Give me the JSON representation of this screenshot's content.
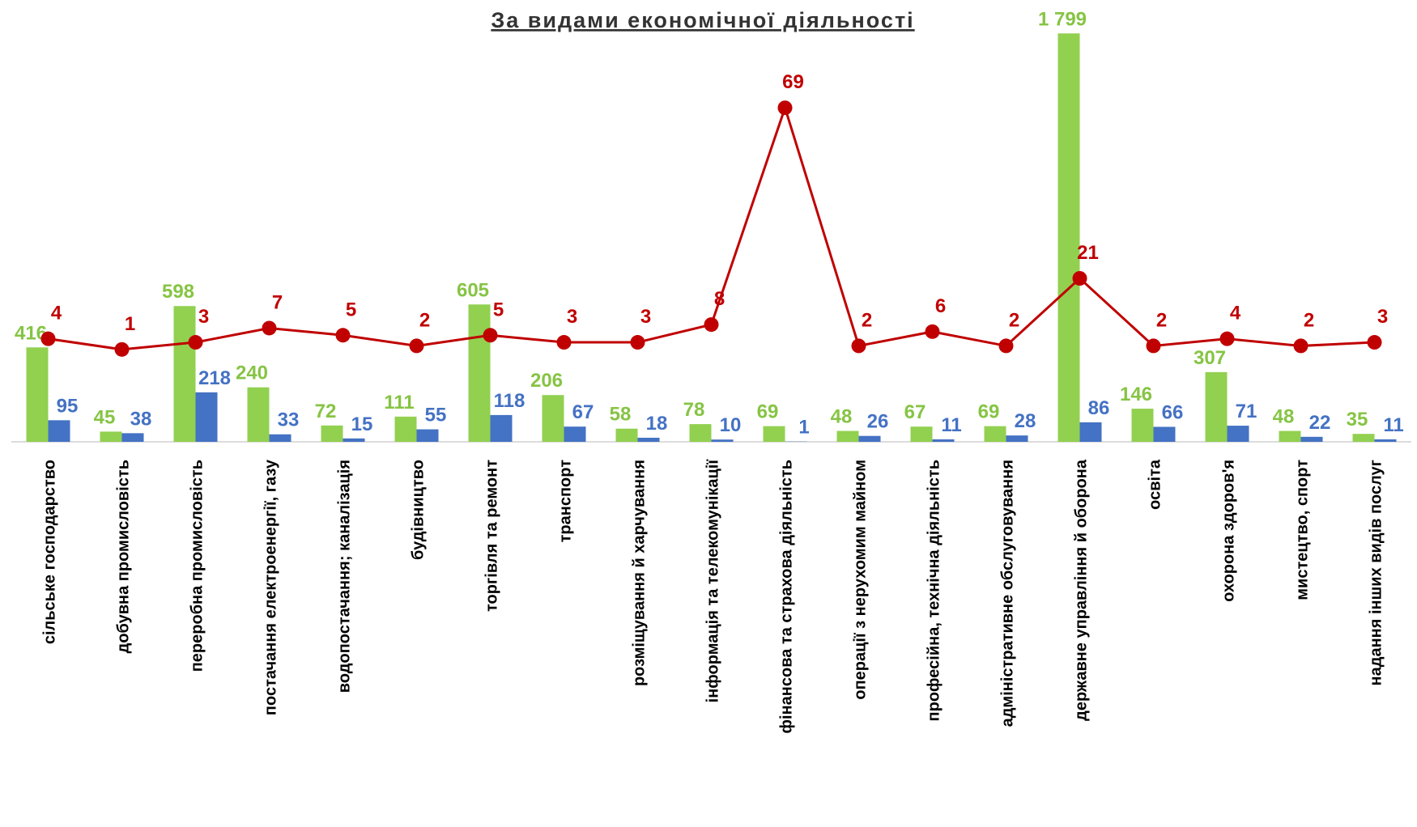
{
  "chart_data": {
    "type": "bar",
    "title": "За видами економічної діяльності",
    "categories": [
      "сільське господарство",
      "добувна промисловість",
      "переробна промисловість",
      "постачання електроенергії, газу",
      "водопостачання; каналізація",
      "будівництво",
      "торгівля та ремонт",
      "транспорт",
      "розміщування й харчування",
      "інформація та телекомунікації",
      "фінансова та страхова діяльність",
      "операції з нерухомим майном",
      "професійна, технічна діяльність",
      "адміністративне обслуговування",
      "державне управління й оборона",
      "освіта",
      "охорона здоров'я",
      "мистецтво, спорт",
      "надання інших видів послуг"
    ],
    "series": [
      {
        "color": "#92d050",
        "values": [
          416,
          45,
          598,
          240,
          72,
          111,
          605,
          206,
          58,
          78,
          69,
          48,
          67,
          69,
          1799,
          146,
          307,
          48,
          35
        ],
        "value_labels": [
          "416",
          "45",
          "598",
          "240",
          "72",
          "111",
          "605",
          "206",
          "58",
          "78",
          "69",
          "48",
          "67",
          "69",
          "1 799",
          "146",
          "307",
          "48",
          "35"
        ]
      },
      {
        "color": "#4472c4",
        "values": [
          95,
          38,
          218,
          33,
          15,
          55,
          118,
          67,
          18,
          10,
          1,
          26,
          11,
          28,
          86,
          66,
          71,
          22,
          11
        ]
      },
      {
        "color": "#c00000",
        "type": "line",
        "axis": "y2",
        "values": [
          4,
          1,
          3,
          7,
          5,
          2,
          5,
          3,
          3,
          8,
          69,
          2,
          6,
          2,
          21,
          2,
          4,
          2,
          3
        ]
      }
    ],
    "ylim": [
      0,
      1800
    ],
    "y2lim": [
      -25,
      90
    ],
    "grid": false
  }
}
